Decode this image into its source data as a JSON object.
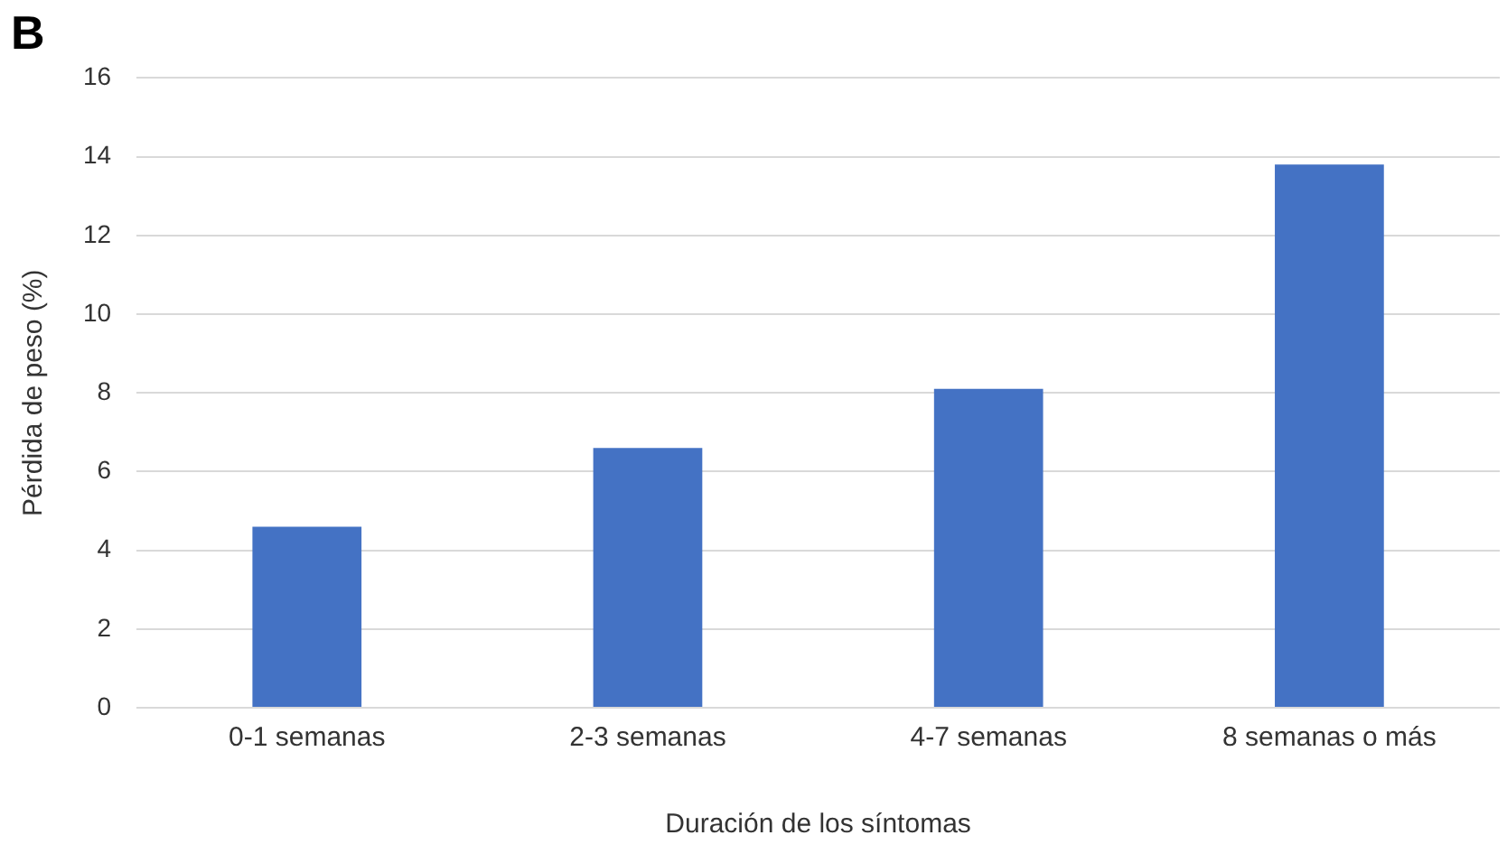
{
  "chart_data": {
    "type": "bar",
    "title": "B",
    "xlabel": "Duración de los síntomas",
    "ylabel": "Pérdida de peso (%)",
    "categories": [
      "0-1 semanas",
      "2-3 semanas",
      "4-7 semanas",
      "8 semanas o más"
    ],
    "values": [
      4.6,
      6.6,
      8.1,
      13.8
    ],
    "color": "#4472c4",
    "ylim": [
      0,
      16
    ],
    "yticks": [
      0,
      2,
      4,
      6,
      8,
      10,
      12,
      14,
      16
    ],
    "grid": "y",
    "legend": false
  }
}
